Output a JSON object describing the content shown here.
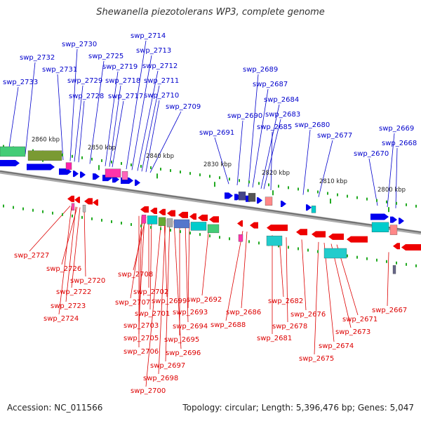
{
  "title": "Shewanella piezotolerans WP3, complete genome",
  "accession": "Accession: NC_011566",
  "summary": "Topology: circular; Length: 5,396,476 bp; Genes: 5,047",
  "colors": {
    "forward_label": "#0000cc",
    "reverse_label": "#dd0000",
    "forward_gene": "#0000ee",
    "reverse_gene": "#ee0000",
    "axis": "#888888",
    "tick": "#22aa22"
  },
  "kbp_ticks": [
    "2860 kbp",
    "2850 kbp",
    "2840 kbp",
    "2830 kbp",
    "2820 kbp",
    "2810 kbp",
    "2800 kbp"
  ],
  "forward_labels": [
    "swp_2733",
    "swp_2732",
    "swp_2731",
    "swp_2730",
    "swp_2729",
    "swp_2728",
    "swp_2725",
    "swp_2719",
    "swp_2718",
    "swp_2717",
    "swp_2714",
    "swp_2713",
    "swp_2712",
    "swp_2711",
    "swp_2710",
    "swp_2709",
    "swp_2691",
    "swp_2690",
    "swp_2689",
    "swp_2687",
    "swp_2684",
    "swp_2683",
    "swp_2685",
    "swp_2680",
    "swp_2677",
    "swp_2670",
    "swp_2669",
    "swp_2668"
  ],
  "reverse_labels": [
    "swp_2727",
    "swp_2726",
    "swp_2720",
    "swp_2722",
    "swp_2723",
    "swp_2724",
    "swp_2708",
    "swp_2702",
    "swp_2707",
    "swp_2699",
    "swp_2701",
    "swp_2703",
    "swp_2705",
    "swp_2706",
    "swp_2692",
    "swp_2693",
    "swp_2694",
    "swp_2695",
    "swp_2696",
    "swp_2697",
    "swp_2698",
    "swp_2700",
    "swp_2686",
    "swp_2688",
    "swp_2682",
    "swp_2676",
    "swp_2678",
    "swp_2681",
    "swp_2671",
    "swp_2673",
    "swp_2674",
    "swp_2675",
    "swp_2667"
  ]
}
